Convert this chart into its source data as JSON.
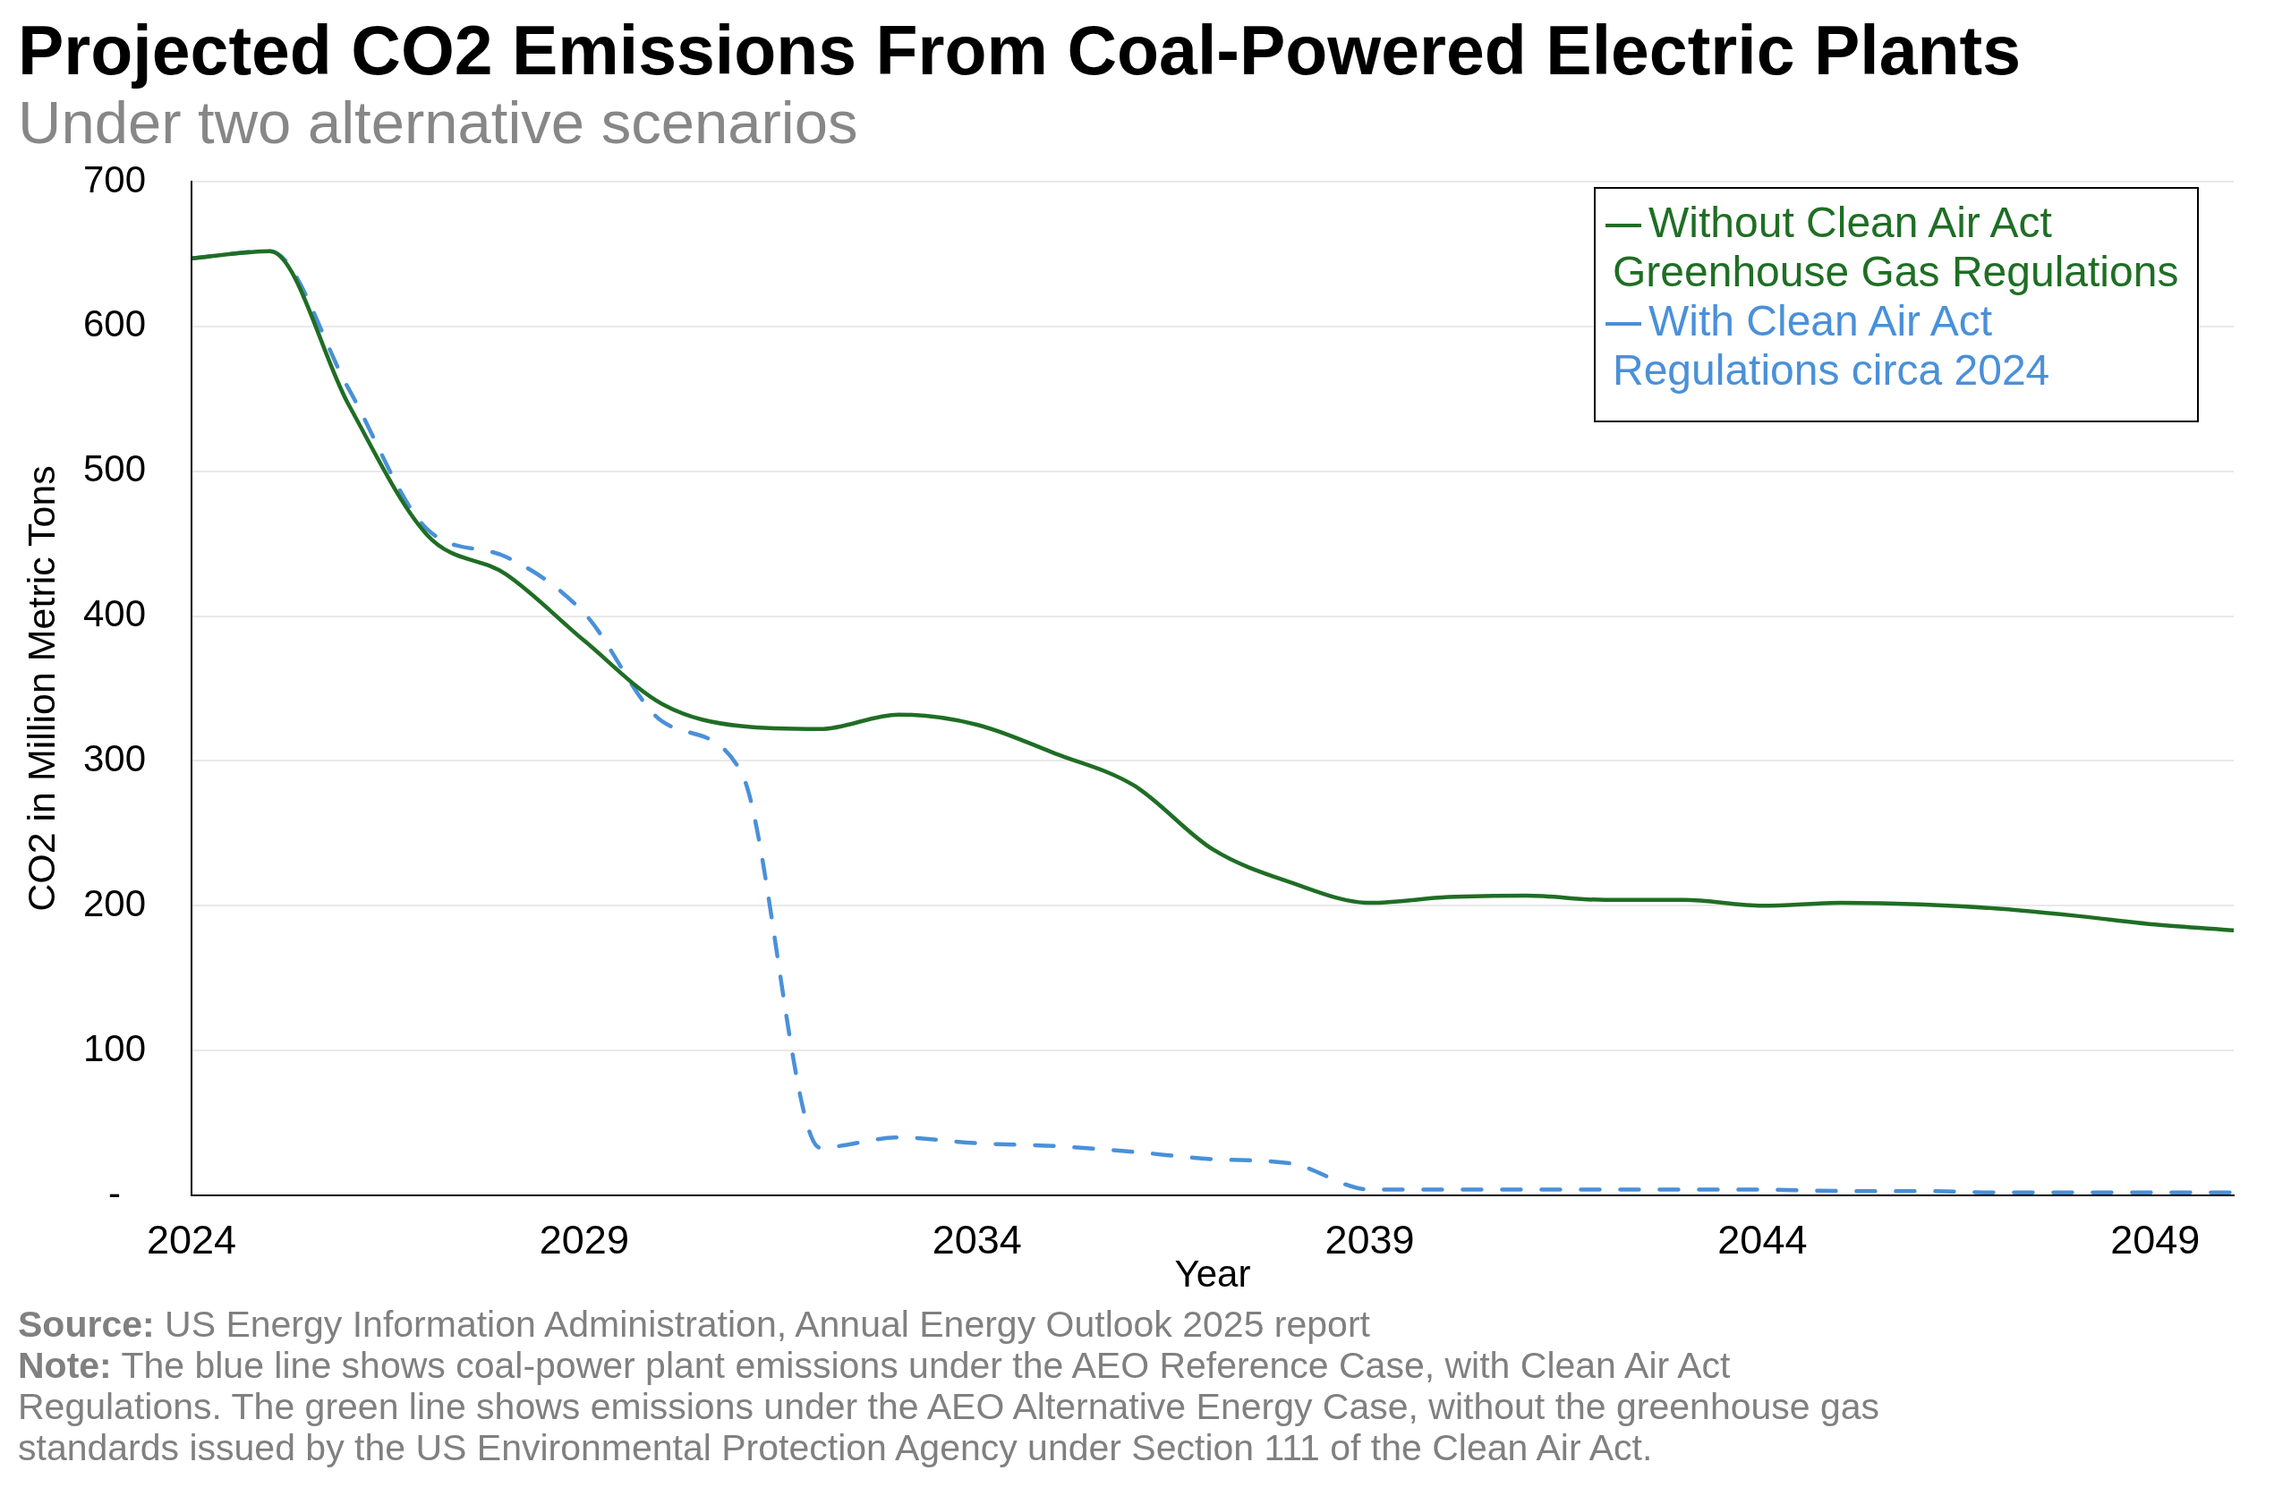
{
  "chart_data": {
    "type": "line",
    "title": "Projected CO2 Emissions From Coal-Powered Electric Plants",
    "subtitle": "Under two alternative scenarios",
    "xlabel": "Year",
    "ylabel": "CO2 in Million Metric Tons",
    "x": [
      2024,
      2025,
      2026,
      2027,
      2028,
      2029,
      2030,
      2031,
      2032,
      2033,
      2034,
      2035,
      2036,
      2037,
      2038,
      2039,
      2040,
      2041,
      2042,
      2043,
      2044,
      2045,
      2046,
      2047,
      2048,
      2049,
      2050
    ],
    "xlim": [
      2024,
      2050
    ],
    "xticks": [
      2024,
      2029,
      2034,
      2039,
      2044,
      2049
    ],
    "ylim": [
      0,
      700
    ],
    "yticks": [
      {
        "value": 0,
        "label": "-"
      },
      100,
      200,
      300,
      400,
      500,
      600,
      700
    ],
    "grid": "y",
    "legend": "top right",
    "marker": "none",
    "series": [
      {
        "name": "Without Clean Air Act Greenhouse Gas Regulations",
        "color": "#1f6e24",
        "line_style": "solid",
        "values": [
          647,
          652,
          546,
          456,
          429,
          383,
          339,
          324,
          322,
          332,
          325,
          305,
          283,
          239,
          216,
          202,
          206,
          207,
          204,
          204,
          200,
          202,
          201,
          198,
          193,
          187,
          183
        ]
      },
      {
        "name": "With Clean Air Act Regulations circa 2024",
        "color": "#4a90d9",
        "line_style": "dashed",
        "values": [
          647,
          652,
          557,
          460,
          441,
          402,
          327,
          292,
          33,
          40,
          36,
          34,
          30,
          25,
          22,
          4,
          4,
          4,
          4,
          4,
          4,
          3,
          3,
          2,
          2,
          2,
          2
        ]
      }
    ],
    "annotations": [
      "Source: US Energy Information Administration, Annual Energy Outlook 2025 report",
      "Note: The blue line shows coal-power plant emissions under the AEO Reference Case, with Clean Air Act Regulations. The green line shows emissions under the AEO Alternative Energy Case, without the greenhouse gas standards issued by the US Environmental Protection Agency under Section 111 of the Clean Air Act."
    ]
  }
}
